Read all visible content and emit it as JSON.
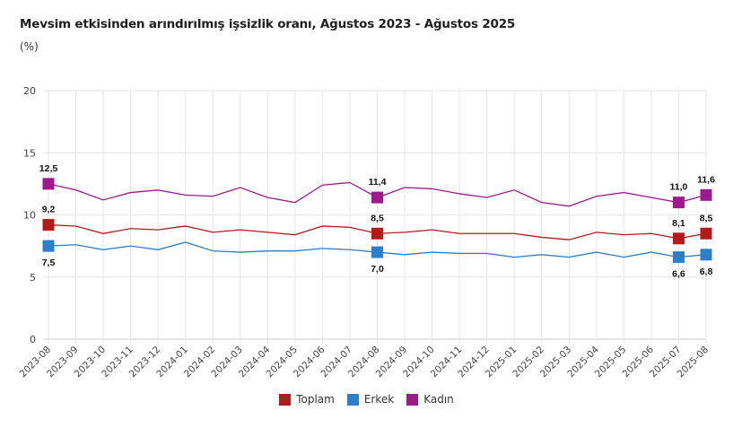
{
  "chart_data": {
    "type": "line",
    "title": "Mevsim etkisinden arındırılmış işsizlik oranı, Ağustos 2023 - Ağustos 2025",
    "subtitle": "(%)",
    "xlabel": "",
    "ylabel": "(%)",
    "ylim": [
      0,
      20
    ],
    "yticks": [
      "0",
      "5",
      "10",
      "15",
      "20"
    ],
    "grid": true,
    "legend_position": "bottom-center",
    "categories": [
      "2023-08",
      "2023-09",
      "2023-10",
      "2023-11",
      "2023-12",
      "2024-01",
      "2024-02",
      "2024-03",
      "2024-04",
      "2024-05",
      "2024-06",
      "2024-07",
      "2024-08",
      "2024-09",
      "2024-10",
      "2024-11",
      "2024-12",
      "2025-01",
      "2025-02",
      "2025-03",
      "2025-04",
      "2025-05",
      "2025-06",
      "2025-07",
      "2025-08"
    ],
    "series": [
      {
        "name": "Toplam",
        "color": "#B31B1B",
        "values": [
          9.2,
          9.1,
          8.5,
          8.9,
          8.8,
          9.1,
          8.6,
          8.8,
          8.6,
          8.4,
          9.1,
          9.0,
          8.5,
          8.6,
          8.8,
          8.5,
          8.5,
          8.5,
          8.2,
          8.0,
          8.6,
          8.4,
          8.5,
          8.1,
          8.5
        ],
        "labeled_points": [
          {
            "index": 0,
            "label": "9,2",
            "position": "above"
          },
          {
            "index": 12,
            "label": "8,5",
            "position": "above"
          },
          {
            "index": 23,
            "label": "8,1",
            "position": "above"
          },
          {
            "index": 24,
            "label": "8,5",
            "position": "above"
          }
        ]
      },
      {
        "name": "Erkek",
        "color": "#2B7FCB",
        "values": [
          7.5,
          7.6,
          7.2,
          7.5,
          7.2,
          7.8,
          7.1,
          7.0,
          7.1,
          7.1,
          7.3,
          7.2,
          7.0,
          6.8,
          7.0,
          6.9,
          6.9,
          6.6,
          6.8,
          6.6,
          7.0,
          6.6,
          7.0,
          6.6,
          6.8
        ],
        "labeled_points": [
          {
            "index": 0,
            "label": "7,5",
            "position": "below"
          },
          {
            "index": 12,
            "label": "7,0",
            "position": "below"
          },
          {
            "index": 23,
            "label": "6,6",
            "position": "below"
          },
          {
            "index": 24,
            "label": "6,8",
            "position": "below"
          }
        ]
      },
      {
        "name": "Kadın",
        "color": "#9C1A8E",
        "values": [
          12.5,
          12.0,
          11.2,
          11.8,
          12.0,
          11.6,
          11.5,
          12.2,
          11.4,
          11.0,
          12.4,
          12.6,
          11.4,
          12.2,
          12.1,
          11.7,
          11.4,
          12.0,
          11.0,
          10.7,
          11.5,
          11.8,
          11.4,
          11.0,
          11.6
        ],
        "labeled_points": [
          {
            "index": 0,
            "label": "12,5",
            "position": "above"
          },
          {
            "index": 12,
            "label": "11,4",
            "position": "above"
          },
          {
            "index": 23,
            "label": "11,0",
            "position": "above"
          },
          {
            "index": 24,
            "label": "11,6",
            "position": "above"
          }
        ]
      }
    ]
  }
}
